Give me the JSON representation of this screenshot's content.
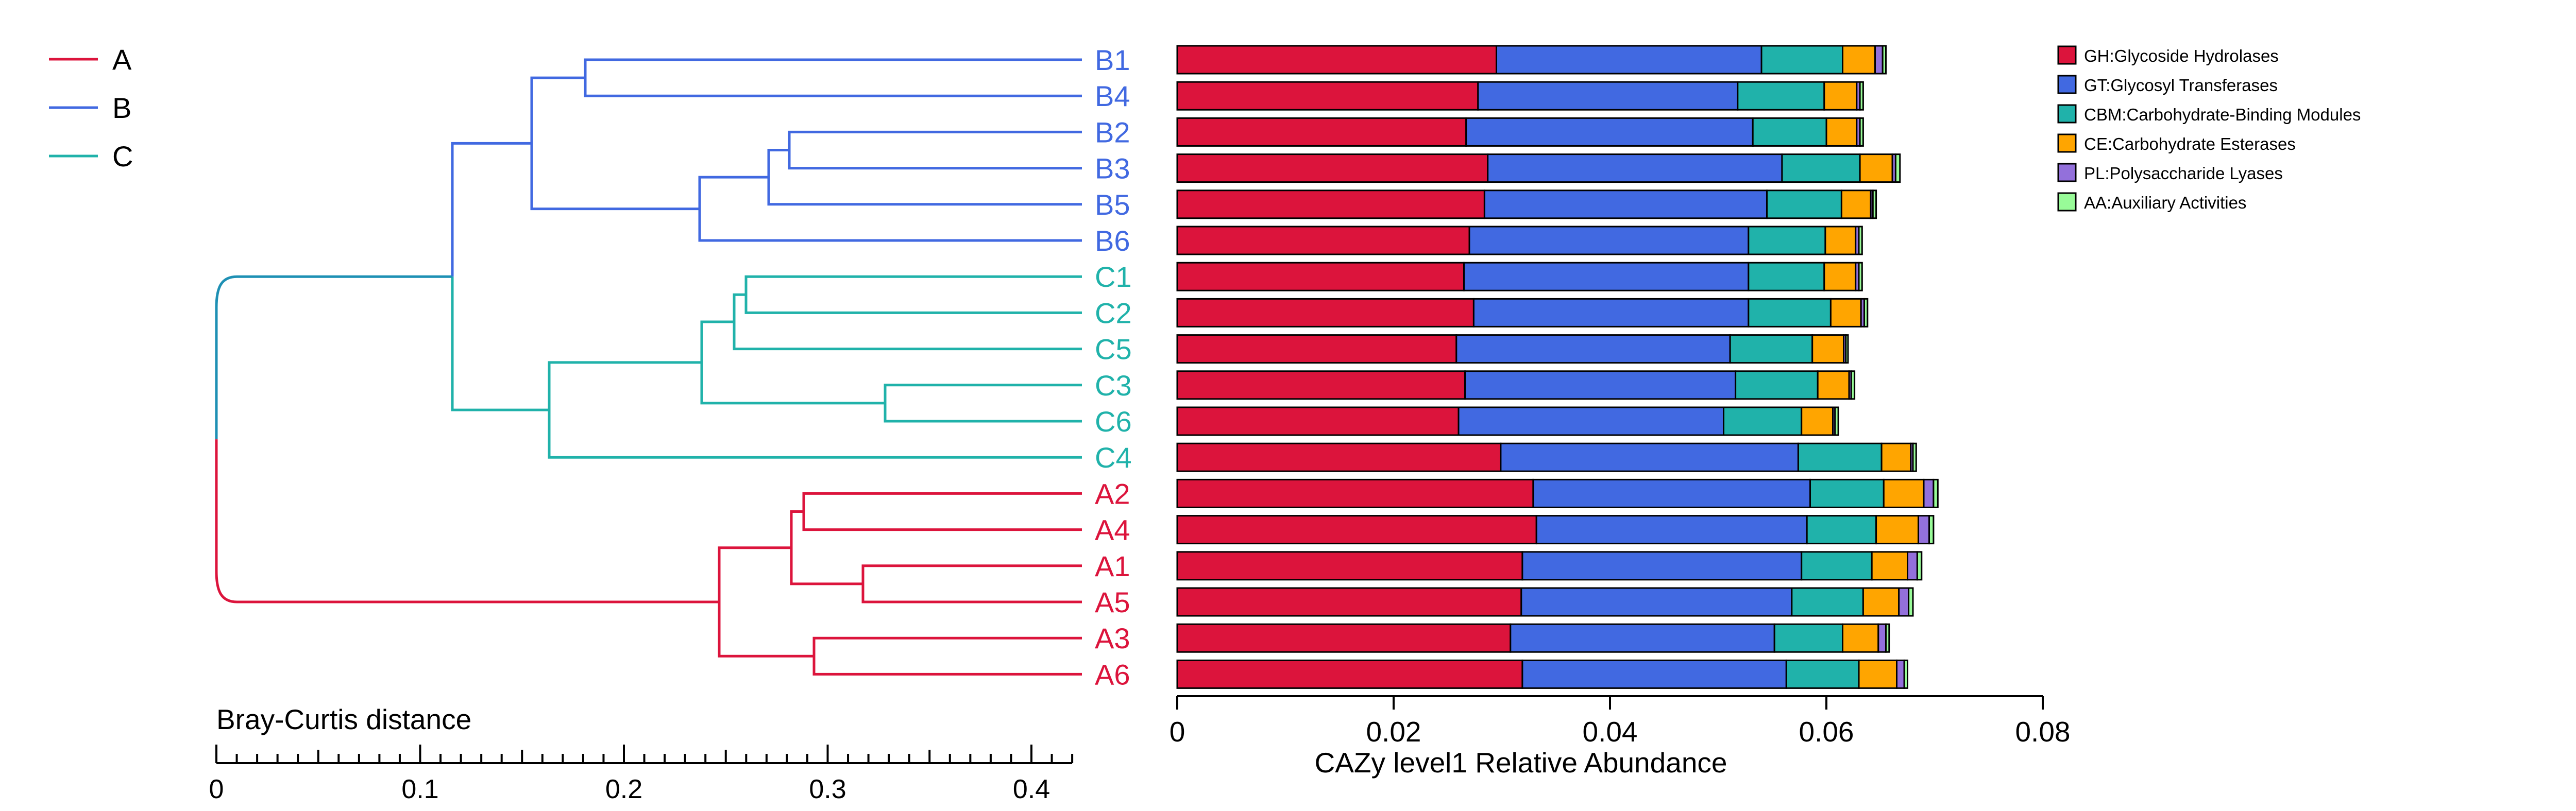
{
  "colors": {
    "A": "#dc143c",
    "B": "#4169e1",
    "C": "#20b2aa",
    "root": "#1e90b4",
    "axis": "#000000"
  },
  "dendrogram": {
    "legend": [
      {
        "label": "A",
        "color": "#dc143c"
      },
      {
        "label": "B",
        "color": "#4169e1"
      },
      {
        "label": "C",
        "color": "#20b2aa"
      }
    ],
    "axis_title": "Bray-Curtis distance",
    "axis_ticks": [
      "0",
      "0.1",
      "0.2",
      "0.3",
      "0.4"
    ],
    "axis_range": [
      0,
      0.42
    ],
    "leaves": [
      "B1",
      "B4",
      "B2",
      "B3",
      "B5",
      "B6",
      "C1",
      "C2",
      "C5",
      "C3",
      "C6",
      "C4",
      "A2",
      "A4",
      "A1",
      "A5",
      "A3",
      "A6"
    ],
    "leaf_groups": [
      "B",
      "B",
      "B",
      "B",
      "B",
      "B",
      "C",
      "C",
      "C",
      "C",
      "C",
      "C",
      "A",
      "A",
      "A",
      "A",
      "A",
      "A"
    ]
  },
  "chart_data": {
    "type": "bar",
    "orientation": "horizontal",
    "stacked": true,
    "categories": [
      "B1",
      "B4",
      "B2",
      "B3",
      "B5",
      "B6",
      "C1",
      "C2",
      "C5",
      "C3",
      "C6",
      "C4",
      "A2",
      "A4",
      "A1",
      "A5",
      "A3",
      "A6"
    ],
    "series": [
      {
        "name": "GH:Glycoside Hydrolases",
        "color": "#dc143c",
        "values": [
          0.0295,
          0.0278,
          0.0267,
          0.0287,
          0.0284,
          0.027,
          0.0265,
          0.0274,
          0.0258,
          0.0266,
          0.026,
          0.0299,
          0.0329,
          0.0332,
          0.0319,
          0.0318,
          0.0308,
          0.0319
        ]
      },
      {
        "name": "GT:Glycosyl Transferases",
        "color": "#4169e1",
        "values": [
          0.0245,
          0.024,
          0.0265,
          0.0272,
          0.0261,
          0.0258,
          0.0263,
          0.0254,
          0.0253,
          0.025,
          0.0245,
          0.0275,
          0.0256,
          0.025,
          0.0258,
          0.025,
          0.0244,
          0.0244
        ]
      },
      {
        "name": "CBM:Carbohydrate-Binding Modules",
        "color": "#20b2aa",
        "values": [
          0.0075,
          0.008,
          0.0068,
          0.0072,
          0.0069,
          0.0071,
          0.007,
          0.0076,
          0.0076,
          0.0076,
          0.0072,
          0.0077,
          0.0068,
          0.0064,
          0.0065,
          0.0066,
          0.0063,
          0.0067
        ]
      },
      {
        "name": "CE:Carbohydrate Esterases",
        "color": "#ffa500",
        "values": [
          0.003,
          0.003,
          0.0028,
          0.003,
          0.0027,
          0.0028,
          0.0029,
          0.0028,
          0.0029,
          0.0029,
          0.0029,
          0.0027,
          0.0037,
          0.0039,
          0.0033,
          0.0033,
          0.0033,
          0.0035
        ]
      },
      {
        "name": "PL:Polysaccharide Lyases",
        "color": "#9370db",
        "values": [
          0.0007,
          0.0003,
          0.0003,
          0.0003,
          0.0002,
          0.0003,
          0.0003,
          0.0003,
          0.0002,
          0.0002,
          0.0002,
          0.0002,
          0.0009,
          0.001,
          0.0009,
          0.0009,
          0.0007,
          0.0007
        ]
      },
      {
        "name": "AA:Auxiliary Activities",
        "color": "#98fb98",
        "values": [
          0.0003,
          0.0003,
          0.0003,
          0.0004,
          0.0003,
          0.0003,
          0.0003,
          0.0003,
          0.0002,
          0.0003,
          0.0003,
          0.0003,
          0.0004,
          0.0004,
          0.0004,
          0.0004,
          0.0003,
          0.0003
        ]
      }
    ],
    "xlabel": "CAZy level1 Relative Abundance",
    "xlim": [
      0,
      0.08
    ],
    "xticks": [
      "0",
      "0.02",
      "0.04",
      "0.06",
      "0.08"
    ],
    "legend_position": "right",
    "grid": false
  }
}
